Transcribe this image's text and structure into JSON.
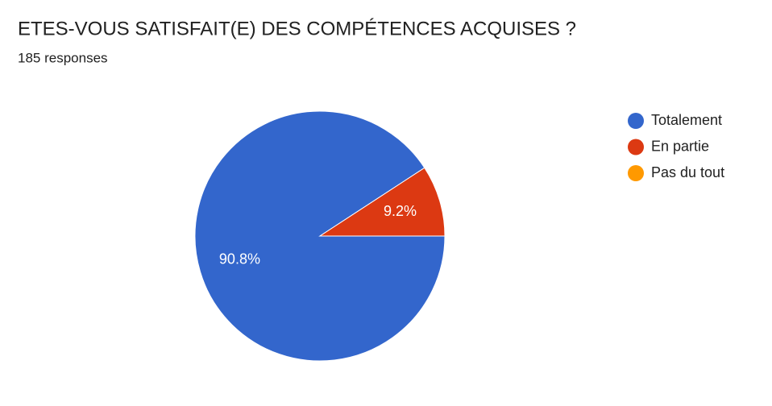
{
  "chart_data": {
    "type": "pie",
    "title": "ETES-VOUS SATISFAIT(E) DES COMPÉTENCES ACQUISES ?",
    "subtitle": "185 responses",
    "categories": [
      "Totalement",
      "En partie",
      "Pas du tout"
    ],
    "values": [
      90.8,
      9.2,
      0
    ],
    "value_labels": [
      "90.8%",
      "9.2%",
      null
    ],
    "colors": [
      "#3366cc",
      "#dc3912",
      "#ff9900"
    ],
    "legend": "right"
  }
}
